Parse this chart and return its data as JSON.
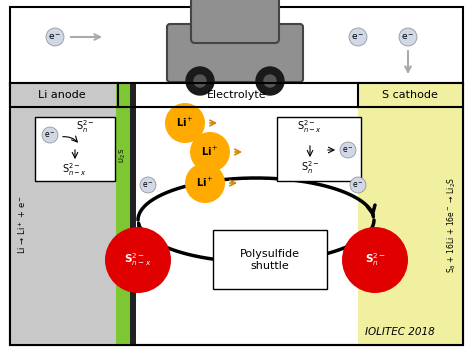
{
  "fig_width": 4.74,
  "fig_height": 3.55,
  "dpi": 100,
  "bg_color": "#ffffff",
  "anode_color": "#c8c8c8",
  "electrolyte_color": "#ffffff",
  "cathode_color": "#f0f0a0",
  "li2s_bar_color": "#7dc832",
  "li2s_bar2_color": "#2a2a2a",
  "anode_label": "Li anode",
  "electrolyte_label": "Electrolyte",
  "cathode_label": "S cathode",
  "iolitec_label": "IOLITEC 2018",
  "polysulfide_label": "Polysulfide\nshuttle",
  "red_circle_color": "#e00000",
  "orange_circle_color": "#ffaa00",
  "top_box_color": "#ffffff",
  "car_color": "#909090",
  "e_circle_color": "#d0d8e8"
}
